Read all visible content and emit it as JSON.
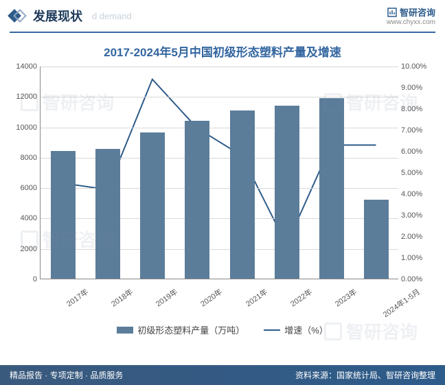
{
  "header": {
    "title": "发展现状",
    "subtitle": "d demand",
    "brand": "智研咨询",
    "brand_url": "www.chyxx.com"
  },
  "chart": {
    "title": "2017-2024年5月中国初级形态塑料产量及增速",
    "type": "bar+line",
    "categories": [
      "2017年",
      "2018年",
      "2019年",
      "2020年",
      "2021年",
      "2022年",
      "2023年",
      "2024年1-5月"
    ],
    "bar_series": {
      "label": "初级形态塑料产量（万吨）",
      "values": [
        8400,
        8550,
        9600,
        10400,
        11050,
        11400,
        11900,
        5200
      ],
      "color": "#5b7d9a"
    },
    "line_series": {
      "label": "增速（%）",
      "values": [
        4.5,
        4.2,
        9.4,
        7.1,
        5.8,
        1.6,
        6.3,
        6.3
      ],
      "color": "#2d5b8a",
      "line_width": 2
    },
    "y_left": {
      "min": 0,
      "max": 14000,
      "step": 2000,
      "ticks": [
        "0",
        "2000",
        "4000",
        "6000",
        "8000",
        "10000",
        "12000",
        "14000"
      ]
    },
    "y_right": {
      "min": 0,
      "max": 10,
      "step": 1,
      "ticks": [
        "0.00%",
        "1.00%",
        "2.00%",
        "3.00%",
        "4.00%",
        "5.00%",
        "6.00%",
        "7.00%",
        "8.00%",
        "9.00%",
        "10.00%"
      ]
    },
    "grid_color": "#d8d8d8",
    "background_color": "#ffffff",
    "bar_width_ratio": 0.55,
    "x_label_rotation": -35,
    "x_label_fontsize": 11,
    "y_label_fontsize": 11,
    "title_fontsize": 17,
    "title_color": "#3366a0"
  },
  "legend": {
    "bar": "初级形态塑料产量（万吨）",
    "line": "增速（%）"
  },
  "footer": {
    "left": "精品报告 · 专项定制 · 品质服务",
    "right": "资料来源：国家统计局、智研咨询整理"
  },
  "watermark": {
    "text": "智研咨询"
  }
}
